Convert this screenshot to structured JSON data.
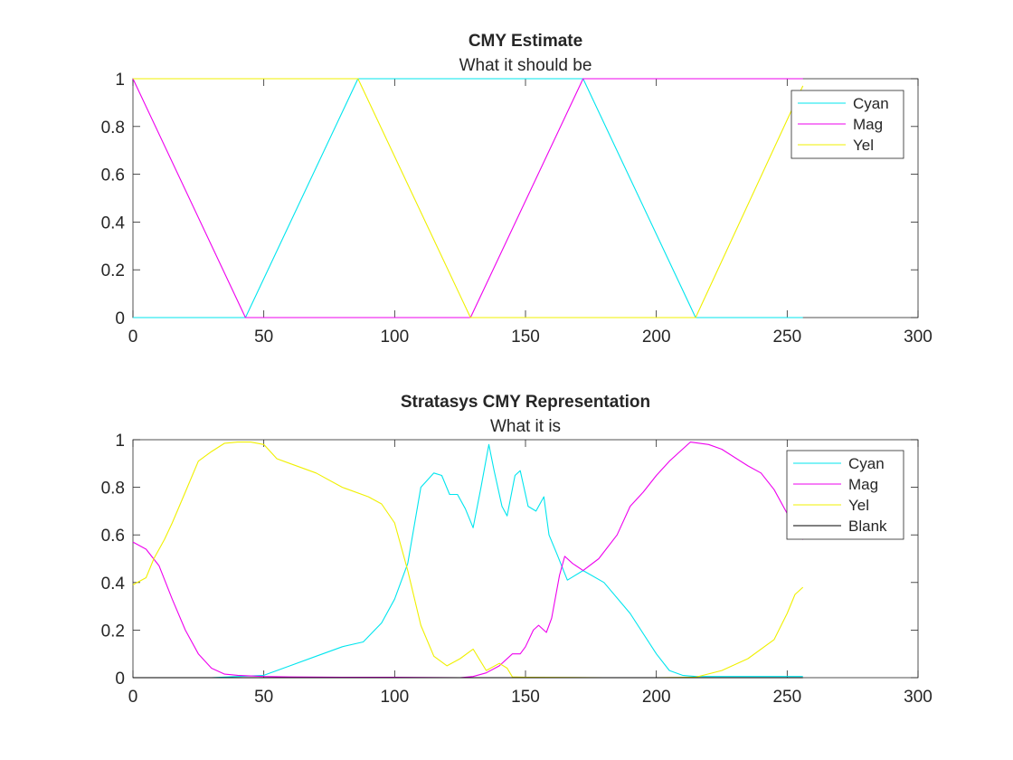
{
  "chart_data": [
    {
      "type": "line",
      "title": "CMY Estimate",
      "subtitle": "What it should be",
      "xlabel": "",
      "ylabel": "",
      "xlim": [
        0,
        300
      ],
      "ylim": [
        0,
        1
      ],
      "xticks": [
        0,
        50,
        100,
        150,
        200,
        250,
        300
      ],
      "yticks": [
        0,
        0.2,
        0.4,
        0.6,
        0.8,
        1
      ],
      "xtick_labels": [
        "0",
        "50",
        "100",
        "150",
        "200",
        "250",
        "300"
      ],
      "ytick_labels": [
        "0",
        "0.2",
        "0.4",
        "0.6",
        "0.8",
        "1"
      ],
      "grid": false,
      "legend_position": "top-right",
      "series": [
        {
          "name": "Cyan",
          "color": "#00e5ee",
          "x": [
            0,
            43,
            86,
            172,
            215,
            256
          ],
          "y": [
            0,
            0,
            1,
            1,
            0,
            0
          ]
        },
        {
          "name": "Mag",
          "color": "#ee00ee",
          "x": [
            0,
            43,
            129,
            172,
            256
          ],
          "y": [
            1,
            0,
            0,
            1,
            1
          ]
        },
        {
          "name": "Yel",
          "color": "#f0f000",
          "x": [
            0,
            86,
            129,
            215,
            256
          ],
          "y": [
            1,
            1,
            0,
            0,
            0.97
          ]
        }
      ]
    },
    {
      "type": "line",
      "title": "Stratasys CMY Representation",
      "subtitle": "What it is",
      "xlabel": "",
      "ylabel": "",
      "xlim": [
        0,
        300
      ],
      "ylim": [
        0,
        1
      ],
      "xticks": [
        0,
        50,
        100,
        150,
        200,
        250,
        300
      ],
      "yticks": [
        0,
        0.2,
        0.4,
        0.6,
        0.8,
        1
      ],
      "xtick_labels": [
        "0",
        "50",
        "100",
        "150",
        "200",
        "250",
        "300"
      ],
      "ytick_labels": [
        "0",
        "0.2",
        "0.4",
        "0.6",
        "0.8",
        "1"
      ],
      "grid": false,
      "legend_position": "top-right",
      "series": [
        {
          "name": "Cyan",
          "color": "#00e5ee",
          "x": [
            0,
            10,
            20,
            30,
            40,
            50,
            60,
            70,
            80,
            88,
            95,
            100,
            105,
            110,
            115,
            118,
            121,
            124,
            127,
            130,
            133,
            136,
            138,
            141,
            143,
            146,
            148,
            151,
            154,
            157,
            159,
            162,
            166,
            172,
            180,
            190,
            200,
            205,
            210,
            215,
            230,
            256
          ],
          "y": [
            0,
            0,
            0,
            0,
            0.005,
            0.01,
            0.05,
            0.09,
            0.13,
            0.15,
            0.23,
            0.33,
            0.48,
            0.8,
            0.86,
            0.85,
            0.77,
            0.77,
            0.71,
            0.63,
            0.8,
            0.98,
            0.87,
            0.72,
            0.68,
            0.85,
            0.87,
            0.72,
            0.7,
            0.76,
            0.6,
            0.52,
            0.41,
            0.45,
            0.4,
            0.27,
            0.1,
            0.03,
            0.01,
            0.005,
            0.005,
            0.005
          ]
        },
        {
          "name": "Mag",
          "color": "#ee00ee",
          "x": [
            0,
            5,
            10,
            15,
            20,
            25,
            30,
            35,
            40,
            50,
            60,
            80,
            100,
            125,
            130,
            135,
            140,
            145,
            148,
            150,
            153,
            155,
            158,
            160,
            163,
            165,
            168,
            172,
            178,
            185,
            190,
            195,
            200,
            205,
            210,
            213,
            220,
            225,
            235,
            240,
            245,
            250,
            256
          ],
          "y": [
            0.57,
            0.54,
            0.47,
            0.33,
            0.2,
            0.1,
            0.04,
            0.015,
            0.01,
            0.005,
            0.003,
            0.002,
            0.002,
            0,
            0.005,
            0.02,
            0.05,
            0.1,
            0.1,
            0.13,
            0.2,
            0.22,
            0.19,
            0.25,
            0.43,
            0.51,
            0.48,
            0.45,
            0.5,
            0.6,
            0.72,
            0.78,
            0.85,
            0.91,
            0.96,
            0.99,
            0.98,
            0.96,
            0.89,
            0.86,
            0.79,
            0.69,
            0.58
          ]
        },
        {
          "name": "Yel",
          "color": "#f0f000",
          "x": [
            0,
            5,
            8,
            12,
            15,
            20,
            25,
            30,
            35,
            40,
            45,
            50,
            55,
            60,
            70,
            80,
            90,
            95,
            100,
            105,
            110,
            115,
            120,
            125,
            130,
            135,
            140,
            143,
            145,
            150,
            160,
            180,
            200,
            215,
            225,
            235,
            245,
            250,
            253,
            256
          ],
          "y": [
            0.39,
            0.42,
            0.5,
            0.58,
            0.65,
            0.78,
            0.91,
            0.95,
            0.985,
            0.99,
            0.99,
            0.98,
            0.92,
            0.9,
            0.86,
            0.8,
            0.76,
            0.73,
            0.65,
            0.45,
            0.22,
            0.09,
            0.05,
            0.08,
            0.12,
            0.03,
            0.06,
            0.04,
            0.003,
            0.002,
            0.001,
            0,
            0,
            0.002,
            0.03,
            0.08,
            0.16,
            0.27,
            0.35,
            0.38
          ]
        },
        {
          "name": "Blank",
          "color": "#000000",
          "x": [
            0,
            256
          ],
          "y": [
            0,
            0
          ]
        }
      ]
    }
  ]
}
